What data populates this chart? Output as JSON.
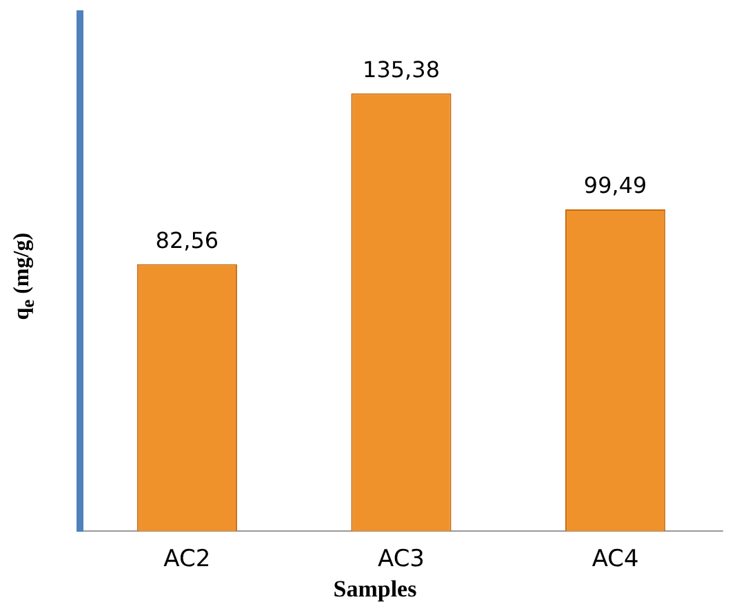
{
  "chart_data": {
    "type": "bar",
    "categories": [
      "AC2",
      "AC3",
      "AC4"
    ],
    "values": [
      82.56,
      135.38,
      99.49
    ],
    "value_labels": [
      "82,56",
      "135,38",
      "99,49"
    ],
    "color": "#f0922b",
    "xlabel": "Samples",
    "ylabel": "q$_{e}$ (mg/g)",
    "grid": false,
    "legend": false
  }
}
